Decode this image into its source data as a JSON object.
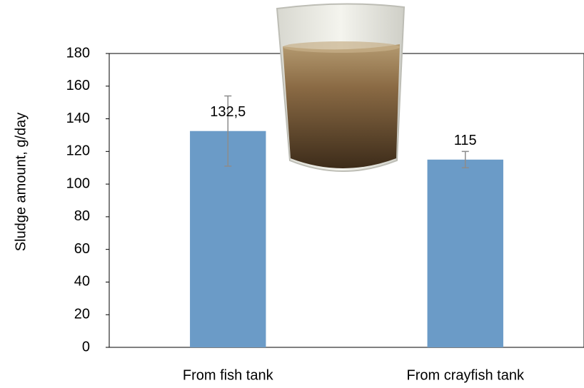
{
  "chart_data": {
    "type": "bar",
    "y_label": "Sludge amount, g/day",
    "categories": [
      "From fish tank",
      "From crayfish tank"
    ],
    "values": [
      132.5,
      115
    ],
    "value_labels": [
      "132,5",
      "115"
    ],
    "errors": [
      21.5,
      5
    ],
    "color": "#6b9bc7",
    "error_color": "#8c8c8c",
    "ylim": [
      0,
      180
    ],
    "yticks": [
      0,
      20,
      40,
      60,
      80,
      100,
      120,
      140,
      160,
      180
    ],
    "grid": false
  }
}
